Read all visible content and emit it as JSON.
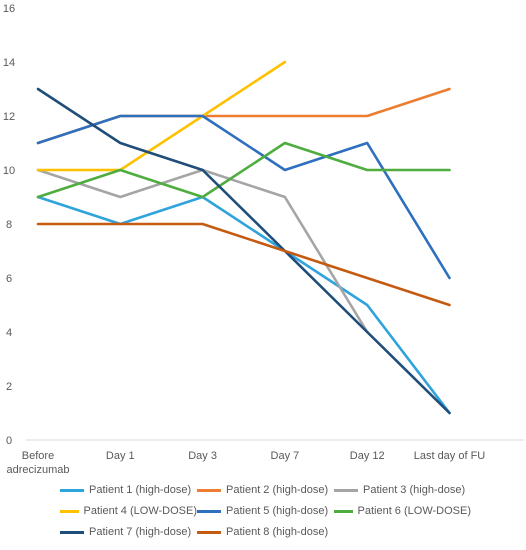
{
  "chart_data": {
    "type": "line",
    "title": "",
    "xlabel": "",
    "ylabel": "",
    "ylim": [
      0,
      16
    ],
    "yticks": [
      0,
      2,
      4,
      6,
      8,
      10,
      12,
      14,
      16
    ],
    "grid": false,
    "legend_position": "bottom",
    "categories": [
      [
        "Before",
        "adrecizumab"
      ],
      [
        "Day 1"
      ],
      [
        "Day 3"
      ],
      [
        "Day 7"
      ],
      [
        "Day 12"
      ],
      [
        "Last day of FU"
      ]
    ],
    "series": [
      {
        "name": "Patient 1 (high-dose)",
        "color": "#2FA3DC",
        "values": [
          9,
          8,
          9,
          7,
          5,
          1
        ]
      },
      {
        "name": "Patient 2 (high-dose)",
        "color": "#ED7D31",
        "values": [
          11,
          12,
          12,
          12,
          12,
          13
        ]
      },
      {
        "name": "Patient 3 (high-dose)",
        "color": "#A5A5A5",
        "values": [
          10,
          9,
          10,
          9,
          4,
          null
        ]
      },
      {
        "name": "Patient 4 (LOW-DOSE)",
        "color": "#FFC000",
        "values": [
          10,
          10,
          12,
          14,
          null,
          null
        ]
      },
      {
        "name": "Patient 5 (high-dose)",
        "color": "#2E6FBE",
        "values": [
          11,
          12,
          12,
          10,
          11,
          6
        ]
      },
      {
        "name": "Patient 6 (LOW-DOSE)",
        "color": "#4EAD3E",
        "values": [
          9,
          10,
          9,
          11,
          10,
          10
        ]
      },
      {
        "name": "Patient 7 (high-dose)",
        "color": "#1E4E79",
        "values": [
          13,
          11,
          10,
          7,
          4,
          1
        ]
      },
      {
        "name": "Patient 8 (high-dose)",
        "color": "#C55A11",
        "values": [
          8,
          8,
          8,
          7,
          6,
          5
        ]
      }
    ]
  }
}
